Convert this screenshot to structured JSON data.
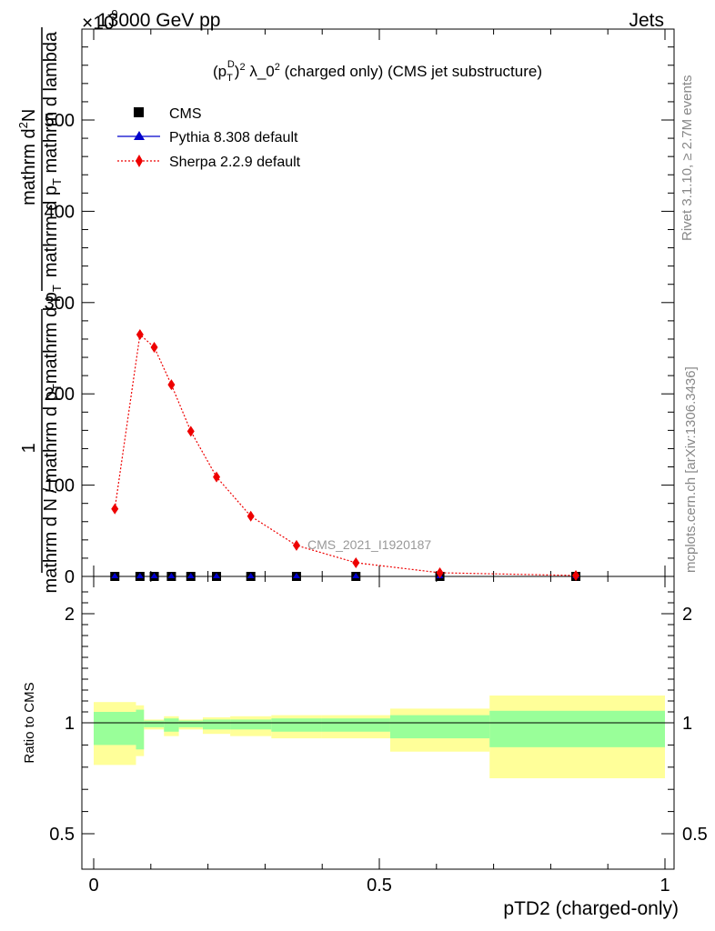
{
  "header": {
    "energy_label": "13000 GeV pp",
    "exponent_label": "×10",
    "exponent_power": "-9",
    "process_label": "Jets"
  },
  "side_labels": {
    "rivet": "Rivet 3.1.10, ≥ 2.7M events",
    "mcplots": "mcplots.cern.ch [arXiv:1306.3436]"
  },
  "watermark": "CMS_2021_I1920187",
  "main_title": "(p_T^D)^2 λ_0^2 (charged only) (CMS jet substructure)",
  "ylabel_main": "1 / (mathrm d N / mathrm d p_T mathrm d p_T ...) · mathrm d^2N / (mathrm d p_T mathrm d lambda)",
  "ylabel_ratio": "Ratio to CMS",
  "xlabel": "pTD2 (charged-only)",
  "legend": [
    {
      "name": "CMS",
      "marker": "square",
      "color": "#000000"
    },
    {
      "name": "Pythia 8.308 default",
      "marker": "triangle",
      "color": "#0000cc"
    },
    {
      "name": "Sherpa 2.2.9 default",
      "marker": "diamond",
      "color": "#ee0000"
    }
  ],
  "chart_data": {
    "type": "line",
    "xlim": [
      0,
      1
    ],
    "ylim_main": [
      0,
      600
    ],
    "ylim_ratio": [
      0.3,
      2.3
    ],
    "x_ticks": [
      0,
      0.5,
      1
    ],
    "x_tick_labels": [
      "0",
      "0.5",
      "1"
    ],
    "y_ticks_main": [
      0,
      100,
      200,
      300,
      400,
      500
    ],
    "y_tick_labels_main": [
      "0",
      "100",
      "200",
      "300",
      "400",
      "500"
    ],
    "y_ticks_ratio": [
      0.5,
      1,
      2
    ],
    "y_tick_labels_ratio": [
      "0.5",
      "1",
      "2"
    ],
    "series": [
      {
        "name": "CMS",
        "x": [
          0.037,
          0.081,
          0.106,
          0.136,
          0.17,
          0.215,
          0.275,
          0.355,
          0.459,
          0.606,
          0.844
        ],
        "y": [
          0,
          0,
          0,
          0,
          0,
          0,
          0,
          0,
          0,
          0,
          0
        ]
      },
      {
        "name": "Pythia 8.308 default",
        "x": [
          0.037,
          0.081,
          0.106,
          0.136,
          0.17,
          0.215,
          0.275,
          0.355,
          0.459,
          0.606,
          0.844
        ],
        "y": [
          0,
          0,
          0,
          0,
          0,
          0,
          0,
          0,
          0,
          0,
          0
        ]
      },
      {
        "name": "Sherpa 2.2.9 default",
        "x": [
          0.037,
          0.081,
          0.106,
          0.136,
          0.17,
          0.215,
          0.275,
          0.355,
          0.459,
          0.606,
          0.844
        ],
        "y": [
          74,
          265,
          251,
          210,
          159,
          109,
          66,
          34,
          15,
          4,
          1
        ]
      }
    ],
    "ratio_bands": {
      "edges": [
        0.0,
        0.074,
        0.088,
        0.123,
        0.149,
        0.191,
        0.239,
        0.311,
        0.399,
        0.519,
        0.693,
        1.0
      ],
      "inner_low": [
        0.9,
        0.88,
        0.98,
        0.96,
        0.98,
        0.97,
        0.97,
        0.96,
        0.96,
        0.93,
        0.89
      ],
      "inner_high": [
        1.1,
        1.12,
        1.02,
        1.04,
        1.02,
        1.03,
        1.03,
        1.04,
        1.04,
        1.07,
        1.11
      ],
      "outer_low": [
        0.81,
        0.85,
        0.97,
        0.94,
        0.97,
        0.95,
        0.94,
        0.93,
        0.93,
        0.87,
        0.75
      ],
      "outer_high": [
        1.19,
        1.16,
        1.03,
        1.06,
        1.03,
        1.05,
        1.06,
        1.07,
        1.07,
        1.13,
        1.25
      ]
    },
    "colors": {
      "inner_band": "#99ff99",
      "outer_band": "#ffff99"
    }
  }
}
